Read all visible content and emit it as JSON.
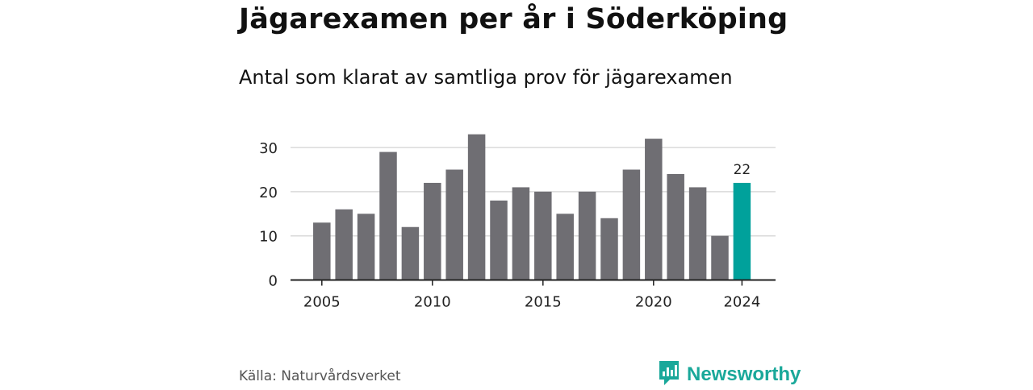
{
  "header": {
    "title": "Jägarexamen per år i Söderköping",
    "subtitle": "Antal som klarat av samtliga prov för jägarexamen"
  },
  "footer": {
    "source": "Källa: Naturvårdsverket",
    "brand": "Newsworthy",
    "brand_icon": "bar-chart-logo-icon"
  },
  "colors": {
    "bar": "#6f6e73",
    "highlight": "#00a19b",
    "grid": "#d9d9d9",
    "axis": "#222222",
    "brand": "#1aa89a"
  },
  "chart_data": {
    "type": "bar",
    "categories": [
      "2005",
      "2006",
      "2007",
      "2008",
      "2009",
      "2010",
      "2011",
      "2012",
      "2013",
      "2014",
      "2015",
      "2016",
      "2017",
      "2018",
      "2019",
      "2020",
      "2021",
      "2022",
      "2023",
      "2024"
    ],
    "values": [
      13,
      16,
      15,
      29,
      12,
      22,
      25,
      33,
      18,
      21,
      20,
      15,
      20,
      14,
      25,
      32,
      24,
      21,
      10,
      22
    ],
    "highlight_index": 19,
    "data_labels": [
      {
        "category": "2024",
        "text": "22"
      }
    ],
    "x_tick_labels": [
      "2005",
      "2010",
      "2015",
      "2020",
      "2024"
    ],
    "y_ticks": [
      0,
      10,
      20,
      30
    ],
    "ylim": [
      0,
      33
    ],
    "grid": true,
    "title": "Jägarexamen per år i Söderköping",
    "subtitle": "Antal som klarat av samtliga prov för jägarexamen",
    "xlabel": "",
    "ylabel": ""
  }
}
